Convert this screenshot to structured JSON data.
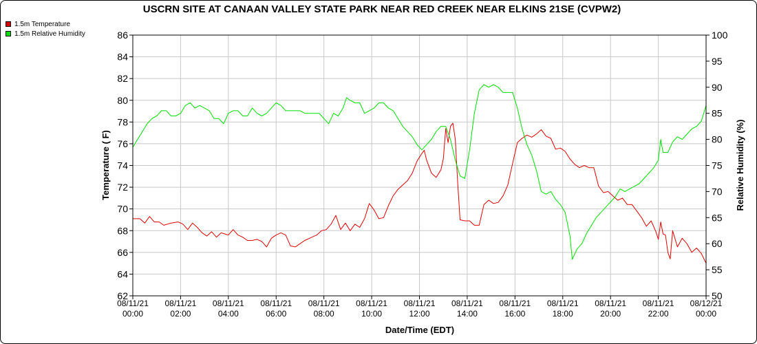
{
  "chart_data": {
    "type": "line",
    "title": "USCRN SITE AT CANAAN VALLEY STATE PARK NEAR RED CREEK NEAR ELKINS 21SE (CVPW2)",
    "xlabel": "Date/Time (EDT)",
    "ylabel_left": "Temperature ( F)",
    "ylabel_right": "Relative Humidity (%)",
    "x_unit_hours": true,
    "xlim": [
      0,
      24
    ],
    "ylim_left": [
      62,
      86
    ],
    "ylim_right": [
      50,
      100
    ],
    "yticks_left": [
      62,
      64,
      66,
      68,
      70,
      72,
      74,
      76,
      78,
      80,
      82,
      84,
      86
    ],
    "yticks_right": [
      50,
      55,
      60,
      65,
      70,
      75,
      80,
      85,
      90,
      95,
      100
    ],
    "xticks": [
      {
        "hour": 0,
        "date": "08/11/21",
        "time": "00:00"
      },
      {
        "hour": 2,
        "date": "08/11/21",
        "time": "02:00"
      },
      {
        "hour": 4,
        "date": "08/11/21",
        "time": "04:00"
      },
      {
        "hour": 6,
        "date": "08/11/21",
        "time": "06:00"
      },
      {
        "hour": 8,
        "date": "08/11/21",
        "time": "08:00"
      },
      {
        "hour": 10,
        "date": "08/11/21",
        "time": "10:00"
      },
      {
        "hour": 12,
        "date": "08/11/21",
        "time": "12:00"
      },
      {
        "hour": 14,
        "date": "08/11/21",
        "time": "14:00"
      },
      {
        "hour": 16,
        "date": "08/11/21",
        "time": "16:00"
      },
      {
        "hour": 18,
        "date": "08/11/21",
        "time": "18:00"
      },
      {
        "hour": 20,
        "date": "08/11/21",
        "time": "20:00"
      },
      {
        "hour": 22,
        "date": "08/11/21",
        "time": "22:00"
      },
      {
        "hour": 24,
        "date": "08/12/21",
        "time": "00:00"
      }
    ],
    "grid": true,
    "legend_position": "top-left",
    "series": [
      {
        "name": "1.5m Temperature",
        "axis": "left",
        "color": "#e00000",
        "points": [
          [
            0.0,
            69.1
          ],
          [
            0.3,
            69.1
          ],
          [
            0.5,
            68.7
          ],
          [
            0.7,
            69.3
          ],
          [
            0.9,
            68.8
          ],
          [
            1.1,
            68.8
          ],
          [
            1.3,
            68.5
          ],
          [
            1.6,
            68.7
          ],
          [
            1.9,
            68.8
          ],
          [
            2.1,
            68.6
          ],
          [
            2.3,
            68.1
          ],
          [
            2.5,
            68.7
          ],
          [
            2.7,
            68.3
          ],
          [
            2.9,
            67.8
          ],
          [
            3.1,
            67.5
          ],
          [
            3.3,
            67.9
          ],
          [
            3.5,
            67.4
          ],
          [
            3.7,
            67.8
          ],
          [
            4.0,
            67.6
          ],
          [
            4.2,
            68.1
          ],
          [
            4.4,
            67.6
          ],
          [
            4.6,
            67.4
          ],
          [
            4.8,
            67.1
          ],
          [
            5.0,
            67.1
          ],
          [
            5.2,
            67.2
          ],
          [
            5.4,
            67.0
          ],
          [
            5.6,
            66.5
          ],
          [
            5.8,
            67.3
          ],
          [
            6.0,
            67.6
          ],
          [
            6.2,
            67.8
          ],
          [
            6.4,
            67.6
          ],
          [
            6.6,
            66.6
          ],
          [
            6.8,
            66.5
          ],
          [
            7.0,
            66.8
          ],
          [
            7.2,
            67.1
          ],
          [
            7.5,
            67.4
          ],
          [
            7.7,
            67.6
          ],
          [
            7.9,
            68.0
          ],
          [
            8.1,
            68.1
          ],
          [
            8.3,
            68.6
          ],
          [
            8.5,
            69.4
          ],
          [
            8.7,
            68.1
          ],
          [
            8.9,
            68.7
          ],
          [
            9.1,
            68.0
          ],
          [
            9.3,
            68.6
          ],
          [
            9.5,
            68.3
          ],
          [
            9.7,
            69.1
          ],
          [
            9.9,
            70.5
          ],
          [
            10.1,
            69.9
          ],
          [
            10.3,
            69.1
          ],
          [
            10.5,
            69.2
          ],
          [
            10.7,
            70.3
          ],
          [
            10.9,
            71.2
          ],
          [
            11.1,
            71.8
          ],
          [
            11.3,
            72.2
          ],
          [
            11.5,
            72.6
          ],
          [
            11.7,
            73.3
          ],
          [
            11.9,
            74.4
          ],
          [
            12.1,
            75.1
          ],
          [
            12.2,
            75.4
          ],
          [
            12.3,
            74.5
          ],
          [
            12.5,
            73.3
          ],
          [
            12.7,
            72.9
          ],
          [
            12.9,
            73.6
          ],
          [
            13.0,
            74.6
          ],
          [
            13.1,
            77.4
          ],
          [
            13.2,
            76.1
          ],
          [
            13.3,
            77.6
          ],
          [
            13.4,
            77.9
          ],
          [
            13.5,
            76.4
          ],
          [
            13.6,
            72.5
          ],
          [
            13.7,
            69.0
          ],
          [
            13.9,
            68.9
          ],
          [
            14.1,
            68.9
          ],
          [
            14.3,
            68.5
          ],
          [
            14.5,
            68.5
          ],
          [
            14.7,
            70.4
          ],
          [
            14.9,
            70.8
          ],
          [
            15.1,
            70.5
          ],
          [
            15.3,
            70.6
          ],
          [
            15.5,
            71.2
          ],
          [
            15.7,
            72.2
          ],
          [
            15.9,
            74.2
          ],
          [
            16.1,
            76.1
          ],
          [
            16.3,
            76.5
          ],
          [
            16.5,
            76.8
          ],
          [
            16.7,
            76.6
          ],
          [
            16.9,
            76.9
          ],
          [
            17.1,
            77.3
          ],
          [
            17.3,
            76.7
          ],
          [
            17.5,
            76.5
          ],
          [
            17.7,
            75.5
          ],
          [
            17.9,
            75.6
          ],
          [
            18.1,
            75.3
          ],
          [
            18.3,
            74.6
          ],
          [
            18.5,
            74.1
          ],
          [
            18.7,
            73.8
          ],
          [
            18.9,
            74.0
          ],
          [
            19.1,
            73.8
          ],
          [
            19.3,
            73.8
          ],
          [
            19.5,
            72.1
          ],
          [
            19.7,
            71.5
          ],
          [
            19.9,
            71.6
          ],
          [
            20.1,
            71.2
          ],
          [
            20.3,
            70.8
          ],
          [
            20.5,
            71.0
          ],
          [
            20.7,
            70.4
          ],
          [
            20.9,
            70.4
          ],
          [
            21.1,
            69.8
          ],
          [
            21.3,
            69.2
          ],
          [
            21.5,
            68.4
          ],
          [
            21.7,
            68.9
          ],
          [
            21.9,
            67.9
          ],
          [
            22.0,
            67.2
          ],
          [
            22.1,
            68.8
          ],
          [
            22.2,
            67.7
          ],
          [
            22.3,
            67.6
          ],
          [
            22.4,
            66.0
          ],
          [
            22.5,
            65.4
          ],
          [
            22.6,
            68.0
          ],
          [
            22.8,
            66.5
          ],
          [
            23.0,
            67.3
          ],
          [
            23.2,
            66.8
          ],
          [
            23.4,
            66.0
          ],
          [
            23.6,
            66.4
          ],
          [
            23.8,
            65.9
          ],
          [
            24.0,
            65.0
          ]
        ]
      },
      {
        "name": "1.5m Relative Humidity",
        "axis": "right",
        "color": "#00e000",
        "points": [
          [
            0.0,
            78.5
          ],
          [
            0.2,
            80.0
          ],
          [
            0.4,
            81.5
          ],
          [
            0.6,
            83.0
          ],
          [
            0.8,
            84.0
          ],
          [
            1.0,
            84.5
          ],
          [
            1.2,
            85.5
          ],
          [
            1.4,
            85.5
          ],
          [
            1.6,
            84.5
          ],
          [
            1.8,
            84.5
          ],
          [
            2.0,
            85.0
          ],
          [
            2.2,
            86.5
          ],
          [
            2.4,
            87.0
          ],
          [
            2.6,
            86.0
          ],
          [
            2.8,
            86.5
          ],
          [
            3.0,
            86.0
          ],
          [
            3.2,
            85.5
          ],
          [
            3.4,
            84.0
          ],
          [
            3.6,
            84.0
          ],
          [
            3.8,
            83.0
          ],
          [
            4.0,
            85.0
          ],
          [
            4.2,
            85.5
          ],
          [
            4.4,
            85.5
          ],
          [
            4.6,
            84.5
          ],
          [
            4.8,
            84.5
          ],
          [
            5.0,
            86.0
          ],
          [
            5.2,
            85.0
          ],
          [
            5.4,
            84.5
          ],
          [
            5.6,
            85.0
          ],
          [
            5.8,
            86.0
          ],
          [
            6.0,
            87.0
          ],
          [
            6.2,
            86.5
          ],
          [
            6.4,
            85.5
          ],
          [
            6.6,
            85.5
          ],
          [
            6.8,
            85.5
          ],
          [
            7.0,
            85.5
          ],
          [
            7.2,
            85.0
          ],
          [
            7.4,
            85.0
          ],
          [
            7.6,
            85.0
          ],
          [
            7.8,
            85.0
          ],
          [
            8.0,
            84.0
          ],
          [
            8.2,
            83.0
          ],
          [
            8.4,
            85.0
          ],
          [
            8.6,
            84.5
          ],
          [
            8.8,
            86.0
          ],
          [
            8.95,
            88.0
          ],
          [
            9.1,
            87.5
          ],
          [
            9.3,
            87.0
          ],
          [
            9.5,
            87.0
          ],
          [
            9.7,
            85.0
          ],
          [
            9.9,
            85.5
          ],
          [
            10.1,
            86.0
          ],
          [
            10.3,
            87.0
          ],
          [
            10.5,
            87.0
          ],
          [
            10.7,
            86.0
          ],
          [
            10.9,
            85.5
          ],
          [
            11.1,
            84.0
          ],
          [
            11.3,
            82.5
          ],
          [
            11.5,
            81.5
          ],
          [
            11.7,
            80.5
          ],
          [
            11.9,
            79.0
          ],
          [
            12.1,
            78.0
          ],
          [
            12.3,
            79.0
          ],
          [
            12.5,
            80.0
          ],
          [
            12.7,
            81.5
          ],
          [
            12.9,
            82.5
          ],
          [
            13.1,
            82.5
          ],
          [
            13.3,
            80.0
          ],
          [
            13.5,
            76.0
          ],
          [
            13.7,
            73.0
          ],
          [
            13.9,
            72.5
          ],
          [
            14.1,
            78.0
          ],
          [
            14.3,
            85.0
          ],
          [
            14.5,
            89.5
          ],
          [
            14.7,
            90.5
          ],
          [
            14.9,
            90.0
          ],
          [
            15.1,
            90.5
          ],
          [
            15.3,
            90.0
          ],
          [
            15.5,
            89.0
          ],
          [
            15.7,
            89.0
          ],
          [
            15.9,
            89.0
          ],
          [
            16.1,
            86.0
          ],
          [
            16.3,
            82.0
          ],
          [
            16.5,
            79.0
          ],
          [
            16.7,
            77.0
          ],
          [
            16.9,
            74.0
          ],
          [
            17.1,
            70.0
          ],
          [
            17.3,
            69.5
          ],
          [
            17.5,
            70.0
          ],
          [
            17.7,
            68.5
          ],
          [
            17.9,
            67.5
          ],
          [
            18.1,
            66.0
          ],
          [
            18.3,
            61.5
          ],
          [
            18.4,
            57.0
          ],
          [
            18.6,
            59.0
          ],
          [
            18.8,
            60.0
          ],
          [
            19.0,
            62.0
          ],
          [
            19.2,
            63.5
          ],
          [
            19.4,
            65.0
          ],
          [
            19.6,
            66.0
          ],
          [
            19.8,
            67.0
          ],
          [
            20.0,
            68.0
          ],
          [
            20.2,
            69.0
          ],
          [
            20.4,
            70.5
          ],
          [
            20.6,
            70.0
          ],
          [
            20.8,
            70.5
          ],
          [
            21.0,
            71.0
          ],
          [
            21.2,
            71.5
          ],
          [
            21.4,
            72.5
          ],
          [
            21.6,
            73.5
          ],
          [
            21.8,
            74.5
          ],
          [
            22.0,
            76.0
          ],
          [
            22.1,
            80.0
          ],
          [
            22.2,
            77.5
          ],
          [
            22.4,
            77.5
          ],
          [
            22.6,
            79.5
          ],
          [
            22.8,
            80.5
          ],
          [
            23.0,
            80.0
          ],
          [
            23.2,
            81.0
          ],
          [
            23.4,
            82.0
          ],
          [
            23.6,
            82.5
          ],
          [
            23.8,
            83.5
          ],
          [
            24.0,
            86.5
          ]
        ]
      }
    ]
  }
}
